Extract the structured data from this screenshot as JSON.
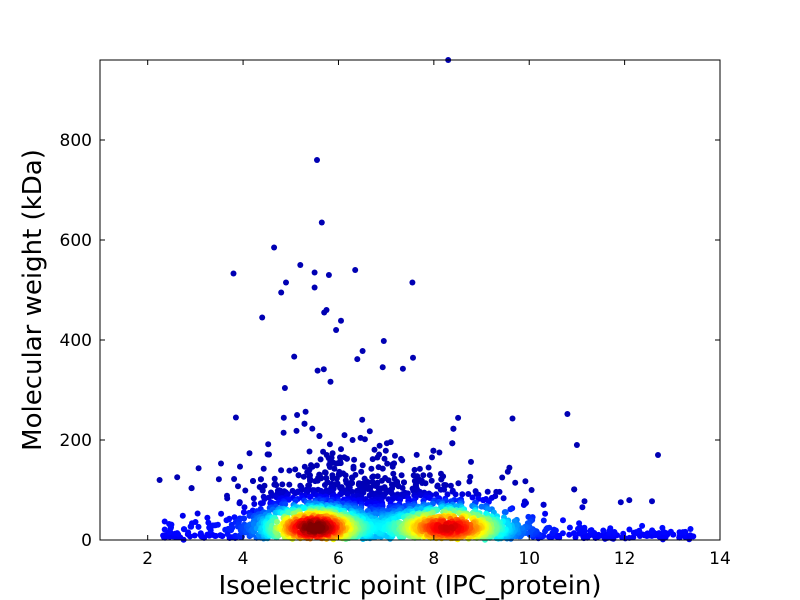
{
  "chart_data": {
    "type": "scatter",
    "title": "",
    "xlabel": "Isoelectric point (IPC_protein)",
    "ylabel": "Molecular weight (kDa)",
    "xlim": [
      1,
      14
    ],
    "ylim": [
      0,
      960
    ],
    "xticks": [
      2,
      4,
      6,
      8,
      10,
      12,
      14
    ],
    "yticks": [
      0,
      200,
      400,
      600,
      800
    ],
    "grid": false,
    "legend": "none",
    "colormap": "jet",
    "color_encoding": "point density (blue = low, red = high)",
    "colors": {
      "low": "#00008f",
      "mid": "#00ffff",
      "high": "#800000"
    },
    "notable_points": [
      [
        5.55,
        760
      ],
      [
        5.65,
        635
      ],
      [
        4.65,
        585
      ],
      [
        3.8,
        533
      ],
      [
        6.35,
        540
      ],
      [
        7.55,
        515
      ],
      [
        5.2,
        550
      ],
      [
        5.5,
        535
      ],
      [
        5.8,
        530
      ],
      [
        5.5,
        505
      ],
      [
        5.75,
        460
      ],
      [
        4.4,
        445
      ],
      [
        5.7,
        455
      ],
      [
        4.9,
        515
      ],
      [
        4.8,
        495
      ],
      [
        6.95,
        398
      ],
      [
        5.95,
        420
      ],
      [
        3.85,
        245
      ],
      [
        10.8,
        252
      ],
      [
        9.65,
        243
      ],
      [
        11.0,
        190
      ],
      [
        12.7,
        170
      ],
      [
        2.25,
        120
      ],
      [
        8.3,
        960
      ]
    ],
    "dense_regions": [
      {
        "x": 5.5,
        "y": 25,
        "note": "highest density"
      },
      {
        "x": 8.3,
        "y": 25,
        "note": "second density peak"
      }
    ]
  }
}
